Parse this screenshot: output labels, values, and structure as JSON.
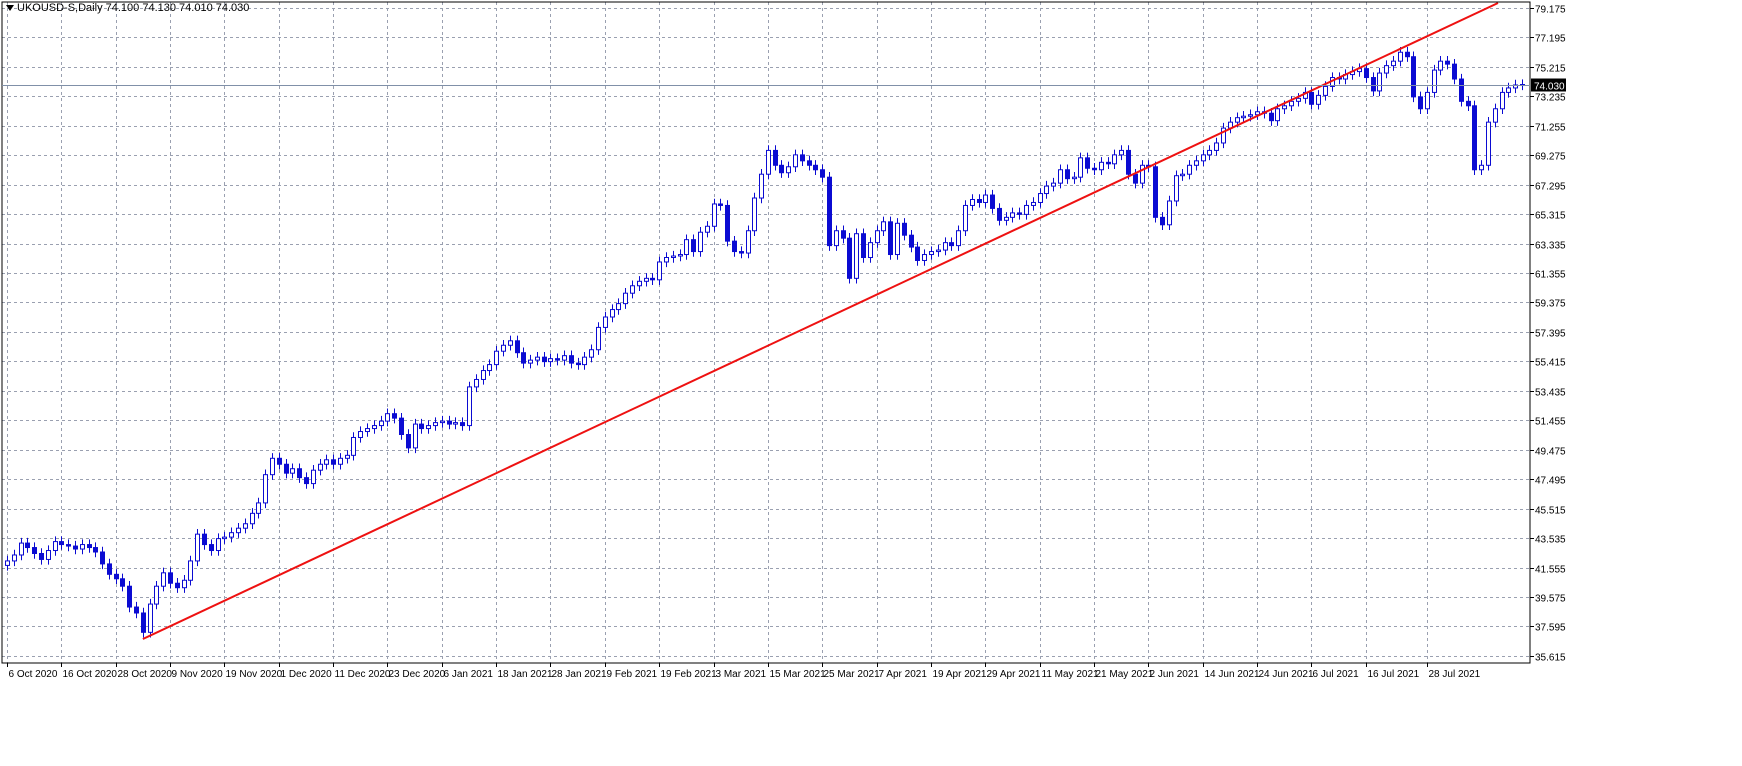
{
  "header": {
    "symbol": "UKOUSD-S,Daily",
    "ohlc": "74.100 74.130 74.010 74.030"
  },
  "colors": {
    "candle": "#0b0bd2",
    "trendline": "#ee1111",
    "grid": "#9aa0b0",
    "axis": "#000000",
    "price_line": "#8090a8"
  },
  "chart_data": {
    "type": "candlestick",
    "title": "UKOUSD-S,Daily",
    "grid": true,
    "y_ticks": [
      "79.175",
      "77.195",
      "75.215",
      "73.235",
      "71.255",
      "69.275",
      "67.295",
      "65.315",
      "63.335",
      "61.355",
      "59.375",
      "57.395",
      "55.415",
      "53.435",
      "51.455",
      "49.475",
      "47.495",
      "45.515",
      "43.535",
      "41.555",
      "39.575",
      "37.595",
      "35.615"
    ],
    "ylim": [
      35.3,
      79.6
    ],
    "x_ticks": [
      "6 Oct 2020",
      "16 Oct 2020",
      "28 Oct 2020",
      "9 Nov 2020",
      "19 Nov 2020",
      "1 Dec 2020",
      "11 Dec 2020",
      "23 Dec 2020",
      "6 Jan 2021",
      "18 Jan 2021",
      "28 Jan 2021",
      "9 Feb 2021",
      "19 Feb 2021",
      "3 Mar 2021",
      "15 Mar 2021",
      "25 Mar 2021",
      "7 Apr 2021",
      "19 Apr 2021",
      "29 Apr 2021",
      "11 May 2021",
      "21 May 2021",
      "2 Jun 2021",
      "14 Jun 2021",
      "24 Jun 2021",
      "6 Jul 2021",
      "16 Jul 2021",
      "28 Jul 2021"
    ],
    "current_price": "74.030",
    "closes": [
      42.0,
      42.4,
      43.2,
      42.9,
      42.5,
      42.1,
      42.7,
      43.3,
      43.1,
      43.0,
      42.8,
      43.1,
      42.9,
      42.6,
      41.8,
      41.1,
      40.8,
      40.3,
      38.9,
      38.5,
      37.2,
      39.1,
      40.3,
      41.2,
      40.5,
      40.2,
      40.7,
      42.0,
      43.8,
      43.1,
      42.7,
      43.5,
      43.6,
      43.9,
      44.2,
      44.5,
      45.2,
      45.9,
      47.8,
      48.9,
      48.5,
      47.9,
      48.2,
      47.6,
      47.2,
      48.1,
      48.5,
      48.8,
      48.5,
      48.9,
      49.1,
      50.3,
      50.7,
      50.9,
      51.1,
      51.4,
      51.9,
      51.6,
      50.5,
      49.6,
      51.2,
      50.9,
      51.1,
      51.3,
      51.4,
      51.2,
      51.3,
      51.1,
      53.7,
      54.2,
      54.8,
      55.2,
      56.1,
      56.5,
      56.8,
      56.0,
      55.3,
      55.5,
      55.7,
      55.4,
      55.6,
      55.5,
      55.8,
      55.3,
      55.2,
      55.7,
      56.2,
      57.7,
      58.4,
      58.9,
      59.3,
      60.0,
      60.5,
      60.8,
      61.0,
      60.9,
      62.1,
      62.4,
      62.5,
      62.6,
      63.6,
      62.8,
      64.1,
      64.5,
      66.0,
      65.9,
      63.5,
      62.8,
      62.7,
      64.2,
      66.4,
      68.0,
      69.6,
      68.6,
      68.1,
      68.5,
      69.3,
      68.9,
      68.6,
      68.3,
      67.8,
      63.2,
      64.2,
      63.7,
      61.0,
      64.0,
      62.4,
      63.4,
      64.2,
      64.8,
      62.6,
      64.7,
      63.9,
      63.1,
      62.2,
      62.6,
      62.8,
      62.9,
      63.4,
      63.2,
      64.2,
      65.9,
      66.3,
      66.1,
      66.6,
      65.7,
      64.9,
      65.1,
      65.4,
      65.3,
      65.9,
      66.1,
      66.7,
      67.2,
      67.4,
      68.3,
      67.7,
      67.8,
      69.1,
      68.4,
      68.3,
      68.8,
      68.7,
      69.3,
      69.6,
      68.0,
      67.4,
      68.6,
      68.5,
      65.1,
      64.6,
      66.2,
      67.9,
      68.0,
      68.6,
      68.9,
      69.3,
      69.6,
      70.1,
      71.1,
      71.5,
      71.8,
      71.9,
      72.0,
      72.2,
      72.1,
      71.6,
      72.4,
      72.6,
      72.9,
      73.1,
      73.5,
      72.7,
      73.3,
      73.9,
      74.5,
      74.4,
      74.7,
      74.9,
      75.1,
      74.5,
      73.6,
      74.8,
      75.3,
      75.6,
      76.2,
      75.9,
      73.2,
      72.4,
      73.5,
      75.0,
      75.6,
      75.4,
      74.4,
      72.9,
      72.6,
      68.3,
      68.6,
      71.5,
      72.4,
      73.5,
      73.8,
      74.0,
      74.03
    ]
  }
}
